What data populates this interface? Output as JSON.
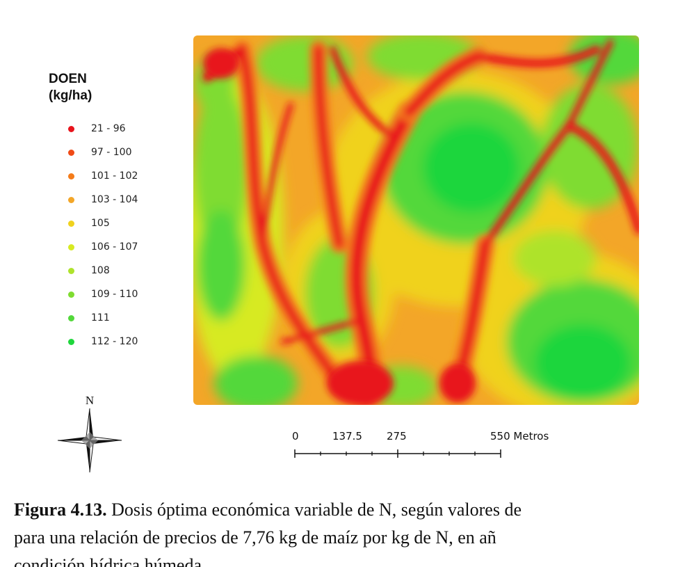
{
  "legend": {
    "title_line1": "DOEN",
    "title_line2": "(kg/ha)",
    "items": [
      {
        "label": "21 - 96",
        "color": "#e8141c"
      },
      {
        "label": "97 - 100",
        "color": "#f04a16"
      },
      {
        "label": "101 - 102",
        "color": "#f47c1a"
      },
      {
        "label": "103 - 104",
        "color": "#f3a628"
      },
      {
        "label": "105",
        "color": "#f0d21e"
      },
      {
        "label": "106 - 107",
        "color": "#d7ea22"
      },
      {
        "label": "108",
        "color": "#aee32c"
      },
      {
        "label": "109 - 110",
        "color": "#7fdc30"
      },
      {
        "label": "111",
        "color": "#52d83a"
      },
      {
        "label": "112 - 120",
        "color": "#1fd63c"
      }
    ]
  },
  "north_arrow": {
    "label": "N"
  },
  "scale_bar": {
    "labels": [
      "0",
      "137.5",
      "275",
      "550 Metros"
    ]
  },
  "caption": {
    "figure_label": "Figura 4.13.",
    "line1_text": " Dosis óptima económica variable de N, según valores de",
    "line2_text": "para una relación de precios de 7,76 kg de maíz por kg de N, en añ",
    "line3_text": "condición hídrica húmeda."
  }
}
